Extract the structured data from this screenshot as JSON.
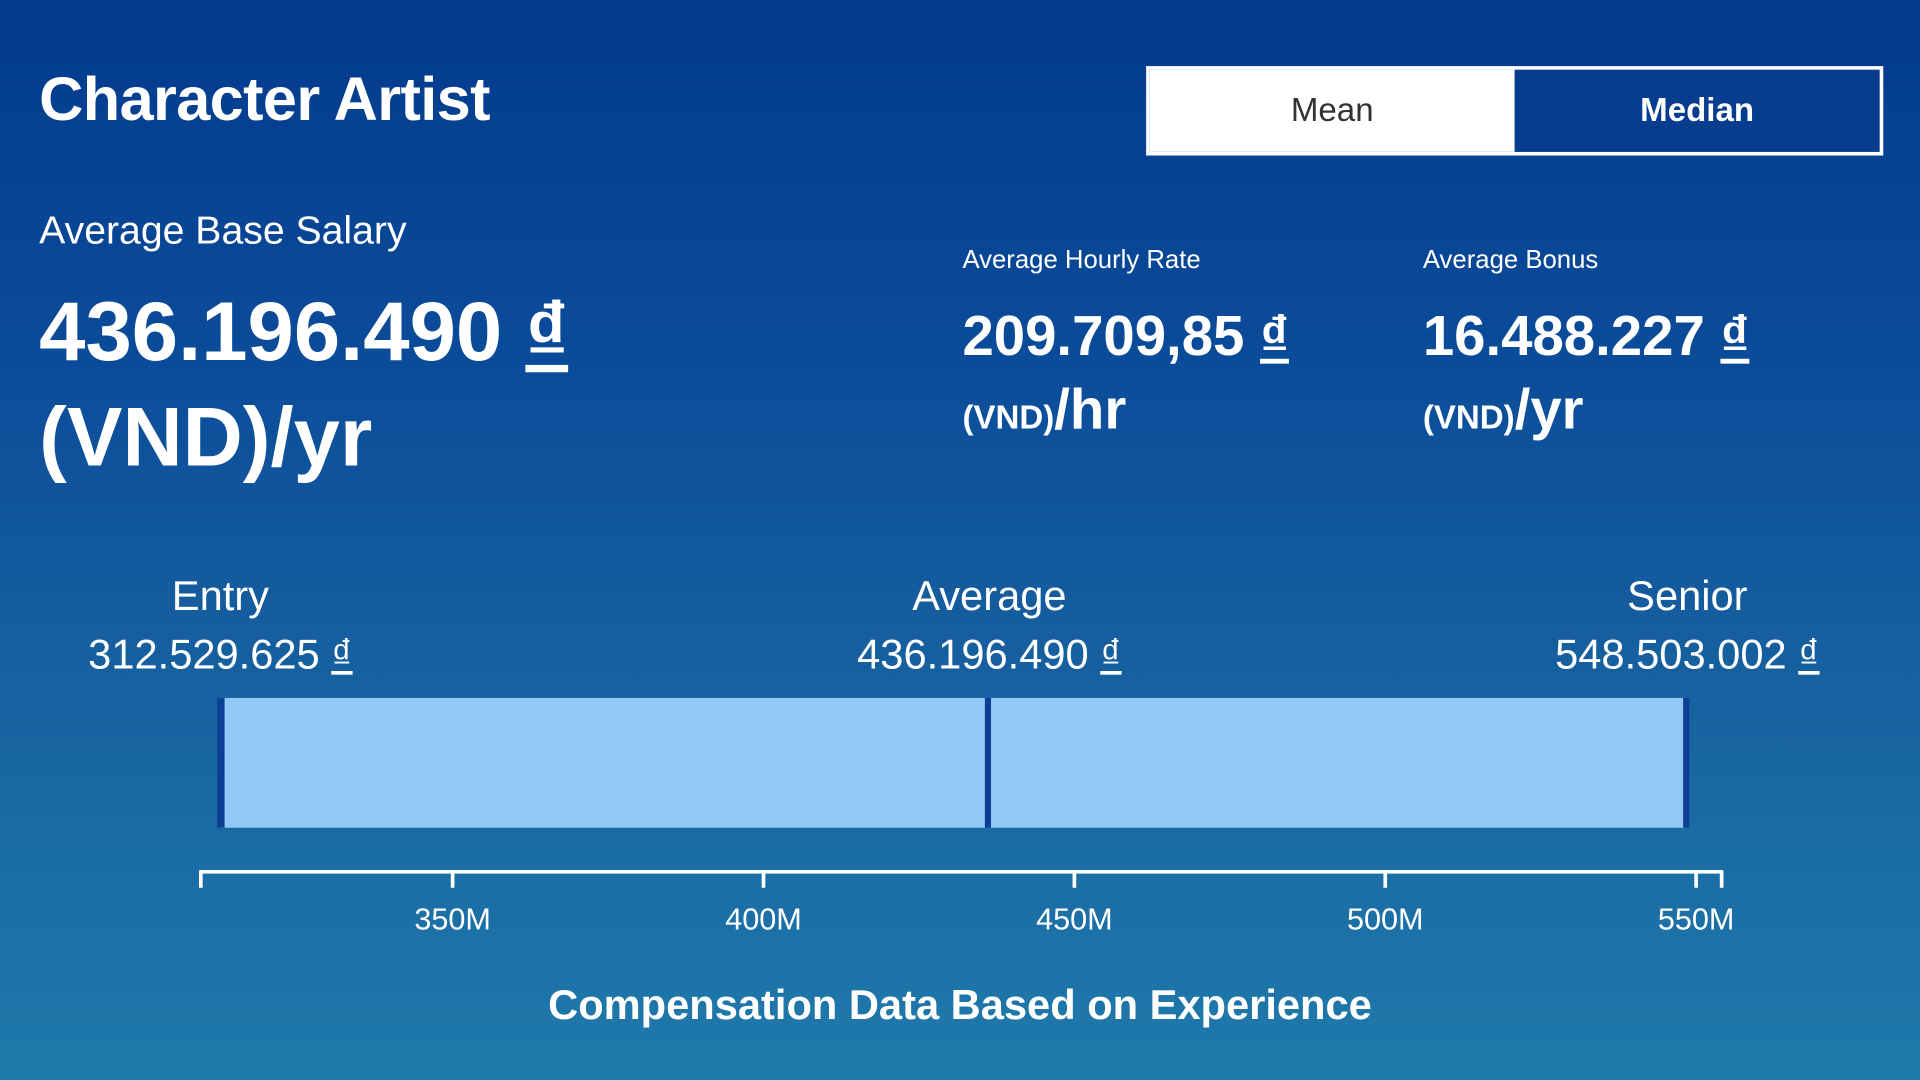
{
  "header": {
    "title": "Character Artist"
  },
  "toggle": {
    "options": [
      "Mean",
      "Median"
    ],
    "selected": "Mean"
  },
  "base_salary": {
    "label": "Average Base Salary",
    "value": "436.196.490",
    "currency": "₫",
    "unit": "(VND)/yr"
  },
  "hourly": {
    "label": "Average Hourly Rate",
    "value": "209.709,85",
    "currency": "₫",
    "unit_code": "(VND)",
    "unit_period": "/hr"
  },
  "bonus": {
    "label": "Average Bonus",
    "value": "16.488.227",
    "currency": "₫",
    "unit_code": "(VND)",
    "unit_period": "/yr"
  },
  "levels": [
    {
      "label": "Entry",
      "value": "312.529.625",
      "currency": "₫"
    },
    {
      "label": "Average",
      "value": "436.196.490",
      "currency": "₫"
    },
    {
      "label": "Senior",
      "value": "548.503.002",
      "currency": "₫"
    }
  ],
  "colors": {
    "bar_fill": "#90c8f6",
    "bar_edge": "#0a3f94",
    "axis": "#ffffff"
  },
  "chart_data": {
    "type": "bar",
    "title": "Compensation Data Based on Experience",
    "entry": 312529625,
    "average": 436196490,
    "senior": 548503002,
    "xlim": [
      309300000,
      554300000
    ],
    "ticks": [
      350000000,
      400000000,
      450000000,
      500000000,
      550000000
    ],
    "tick_labels": [
      "350M",
      "400M",
      "450M",
      "500M",
      "550M"
    ]
  }
}
